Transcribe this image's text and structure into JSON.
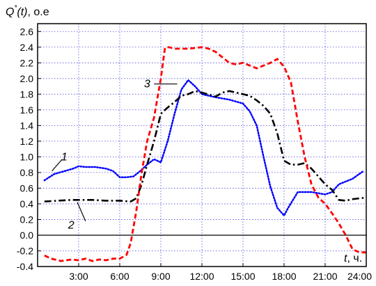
{
  "chart_data": {
    "type": "line",
    "ylabel": {
      "main": "Q",
      "sup": "*",
      "arg": "(t)",
      "unit": ", о.е"
    },
    "xlabel": {
      "var": "t",
      "unit": ", ч."
    },
    "xlim": [
      0,
      24
    ],
    "ylim": [
      -0.4,
      2.7
    ],
    "x_ticks": [
      3,
      6,
      9,
      12,
      15,
      18,
      21,
      24
    ],
    "x_tick_labels": [
      "3:00",
      "6:00",
      "9:00",
      "12:00",
      "15:00",
      "18:00",
      "21:00",
      "24:00"
    ],
    "y_ticks": [
      -0.4,
      -0.2,
      0.0,
      0.2,
      0.4,
      0.6,
      0.8,
      1.0,
      1.2,
      1.4,
      1.6,
      1.8,
      2.0,
      2.2,
      2.4,
      2.6
    ],
    "y_tick_labels": [
      "-0.4",
      "-0.2",
      "0.0",
      "0.2",
      "0.4",
      "0.6",
      "0.8",
      "1.0",
      "1.2",
      "1.4",
      "1.6",
      "1.8",
      "2.0",
      "2.2",
      "2.4",
      "2.6"
    ],
    "grid": true,
    "zero_line": 0,
    "series": [
      {
        "label": "1",
        "color": "#0000ff",
        "style": "dotted",
        "x": [
          0.5,
          1.2,
          2.0,
          2.6,
          3.0,
          3.5,
          4.2,
          5.0,
          5.5,
          6.0,
          6.5,
          7.0,
          7.5,
          8.0,
          8.5,
          9.0,
          9.5,
          10.0,
          10.5,
          11.0,
          11.5,
          12.0,
          12.5,
          13.0,
          14.0,
          15.0,
          15.5,
          16.0,
          16.5,
          17.0,
          17.5,
          18.0,
          18.3,
          19.0,
          20.0,
          21.0,
          21.5,
          22.0,
          23.0,
          23.8
        ],
        "y": [
          0.7,
          0.78,
          0.82,
          0.85,
          0.88,
          0.87,
          0.87,
          0.85,
          0.82,
          0.74,
          0.74,
          0.75,
          0.82,
          0.9,
          0.97,
          0.93,
          1.2,
          1.55,
          1.86,
          1.98,
          1.9,
          1.8,
          1.78,
          1.76,
          1.73,
          1.68,
          1.58,
          1.4,
          1.0,
          0.62,
          0.35,
          0.25,
          0.35,
          0.55,
          0.55,
          0.52,
          0.55,
          0.65,
          0.72,
          0.82
        ]
      },
      {
        "label": "2",
        "color": "#000000",
        "style": "dashdot",
        "x": [
          0.5,
          1.5,
          2.5,
          3.0,
          4.0,
          5.0,
          6.0,
          6.8,
          7.2,
          7.6,
          8.0,
          8.5,
          9.0,
          9.5,
          10.0,
          10.5,
          11.0,
          11.5,
          12.0,
          13.0,
          13.5,
          14.0,
          15.0,
          15.5,
          16.0,
          16.5,
          17.0,
          17.5,
          18.0,
          18.5,
          19.0,
          19.5,
          20.0,
          21.0,
          21.5,
          22.0,
          22.5,
          23.0,
          24.0
        ],
        "y": [
          0.43,
          0.44,
          0.45,
          0.45,
          0.45,
          0.44,
          0.44,
          0.43,
          0.47,
          0.65,
          0.9,
          1.2,
          1.55,
          1.63,
          1.7,
          1.78,
          1.8,
          1.84,
          1.82,
          1.77,
          1.82,
          1.84,
          1.8,
          1.78,
          1.72,
          1.65,
          1.55,
          1.3,
          0.95,
          0.9,
          0.9,
          0.92,
          0.85,
          0.65,
          0.58,
          0.45,
          0.44,
          0.46,
          0.48
        ]
      },
      {
        "label": "3",
        "color": "#ff0000",
        "style": "dashed",
        "x": [
          0.5,
          1.0,
          1.7,
          2.5,
          3.0,
          3.5,
          4.0,
          4.5,
          5.0,
          5.5,
          6.0,
          6.5,
          6.8,
          7.2,
          7.6,
          8.0,
          8.5,
          9.0,
          9.3,
          9.6,
          10.0,
          11.0,
          12.0,
          12.5,
          13.0,
          14.0,
          14.5,
          15.0,
          16.0,
          17.0,
          17.5,
          18.0,
          18.5,
          19.0,
          19.5,
          20.0,
          20.5,
          21.0,
          21.5,
          22.0,
          22.5,
          23.0,
          23.5,
          24.0
        ],
        "y": [
          -0.26,
          -0.3,
          -0.33,
          -0.31,
          -0.32,
          -0.3,
          -0.33,
          -0.31,
          -0.32,
          -0.3,
          -0.3,
          -0.25,
          -0.1,
          0.3,
          0.8,
          1.2,
          1.5,
          2.0,
          2.39,
          2.4,
          2.38,
          2.38,
          2.4,
          2.38,
          2.34,
          2.2,
          2.18,
          2.2,
          2.13,
          2.2,
          2.25,
          2.15,
          1.95,
          1.45,
          1.0,
          0.65,
          0.48,
          0.4,
          0.28,
          0.15,
          0.0,
          -0.18,
          -0.22,
          -0.22
        ]
      }
    ],
    "annotations": [
      {
        "text": "1",
        "series": "1"
      },
      {
        "text": "2",
        "series": "2"
      },
      {
        "text": "3",
        "series": "3"
      }
    ]
  }
}
